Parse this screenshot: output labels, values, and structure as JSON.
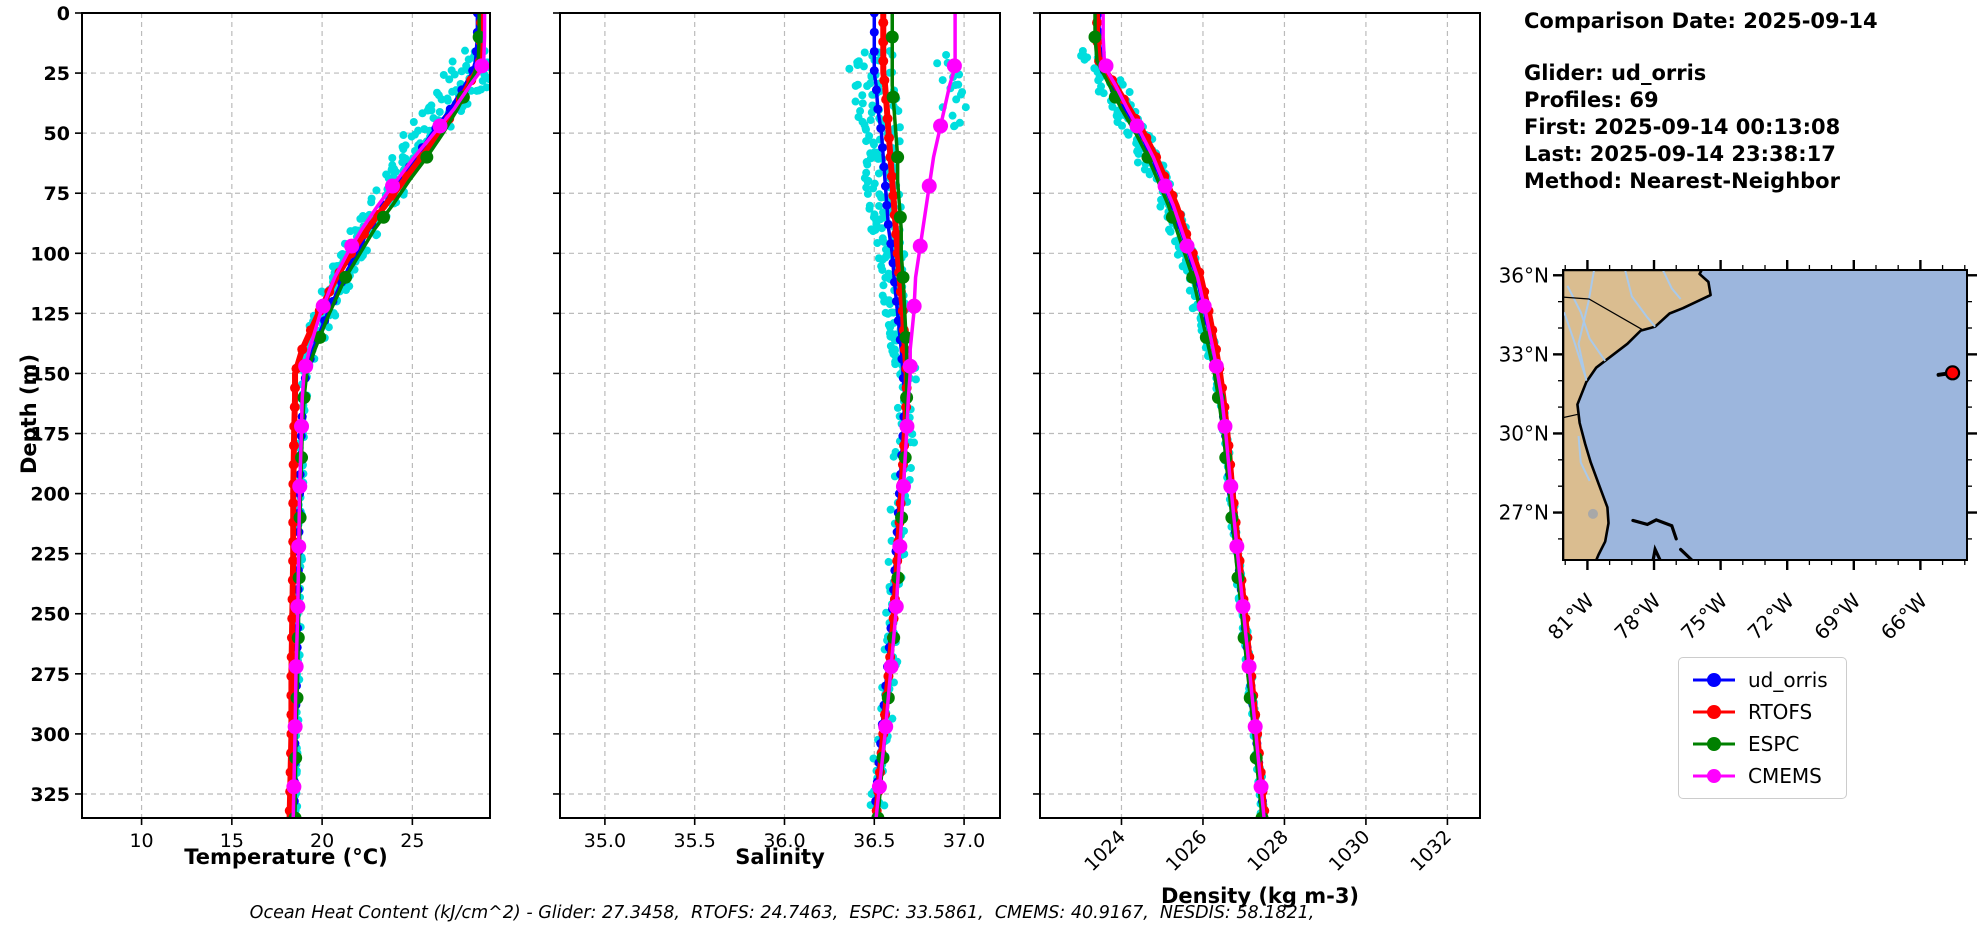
{
  "info_panel": {
    "comparison_date": "Comparison Date: 2025-09-14",
    "glider": "Glider: ud_orris",
    "profiles": "Profiles: 69",
    "first": "First: 2025-09-14 00:13:08",
    "last": "Last: 2025-09-14 23:38:17",
    "method": "Method: Nearest-Neighbor"
  },
  "caption": "Ocean Heat Content (kJ/cm^2) - Glider: 27.3458,  RTOFS: 24.7463,  ESPC: 33.5861,  CMEMS: 40.9167,  NESDIS: 58.1821,",
  "legend": {
    "entries": [
      {
        "label": "ud_orris",
        "color": "#0000ff"
      },
      {
        "label": "RTOFS",
        "color": "#ff0000"
      },
      {
        "label": "ESPC",
        "color": "#008000"
      },
      {
        "label": "CMEMS",
        "color": "#ff00ff"
      }
    ]
  },
  "map": {
    "ocean_color": "#9cb6dd",
    "land_color": "#dabd90",
    "coast_color": "#000000",
    "river_color": "#a9c9ea",
    "lake_color": "#a8a8a8",
    "extent": {
      "lon_west": -82.1,
      "lon_east": -63.9,
      "lat_south": 25.2,
      "lat_north": 36.2
    },
    "lat_ticks": [
      {
        "deg": 36,
        "label": "36°N"
      },
      {
        "deg": 33,
        "label": "33°N"
      },
      {
        "deg": 30,
        "label": "30°N"
      },
      {
        "deg": 27,
        "label": "27°N"
      }
    ],
    "lon_ticks": [
      {
        "deg": -81,
        "label": "81°W"
      },
      {
        "deg": -78,
        "label": "78°W"
      },
      {
        "deg": -75,
        "label": "75°W"
      },
      {
        "deg": -72,
        "label": "72°W"
      },
      {
        "deg": -69,
        "label": "69°W"
      },
      {
        "deg": -66,
        "label": "66°W"
      }
    ],
    "glider_marker": {
      "lon": -64.55,
      "lat": 32.3,
      "fill": "#ff0000"
    }
  },
  "chart_data": {
    "type": "line",
    "ylabel": "Depth (m)",
    "ylim": [
      0,
      335
    ],
    "yticks": [
      0,
      25,
      50,
      75,
      100,
      125,
      150,
      175,
      200,
      225,
      250,
      275,
      300,
      325
    ],
    "ytick_labels": [
      "0",
      "25",
      "50",
      "75",
      "100",
      "125",
      "150",
      "175",
      "200",
      "225",
      "250",
      "275",
      "300",
      "325"
    ],
    "grid": "dashed",
    "legend_position": "lower-right-of-figure",
    "scatter_color": "#00dede",
    "depths_m": [
      0,
      10,
      20,
      25,
      30,
      40,
      50,
      60,
      70,
      80,
      90,
      100,
      110,
      125,
      140,
      150,
      160,
      175,
      200,
      225,
      250,
      275,
      300,
      335
    ],
    "series_styles": [
      {
        "name": "ud_orris",
        "color": "#0000ff",
        "line_width": 3.5,
        "marker_radius": 4.5,
        "marker_every": 8,
        "marker_offset": 0
      },
      {
        "name": "RTOFS",
        "color": "#ff0000",
        "line_width": 6,
        "marker_radius": 5,
        "marker_every": 8,
        "marker_offset": 4
      },
      {
        "name": "ESPC",
        "color": "#008000",
        "line_width": 3.5,
        "marker_radius": 6.5,
        "marker_every": 25,
        "marker_offset": 10
      },
      {
        "name": "CMEMS",
        "color": "#ff00ff",
        "line_width": 3.5,
        "marker_radius": 7.5,
        "marker_every": 25,
        "marker_offset": 22
      }
    ],
    "panels": [
      {
        "id": "temperature",
        "xlabel": "Temperature (°C)",
        "xlim": [
          6.7,
          29.3
        ],
        "xticks": [
          10,
          15,
          20,
          25
        ],
        "xtick_labels": [
          "10",
          "15",
          "20",
          "25"
        ],
        "xtick_rotation": 0,
        "show_y_labels": true,
        "scatter_seed": 11,
        "scatter_bands": [
          {
            "from": 18,
            "to": 150,
            "step": 5,
            "profiles": 9,
            "amp_start": 1.5,
            "amp_end": 0.3,
            "bias": -0.15
          },
          {
            "from": 150,
            "to": 334,
            "step": 6,
            "profiles": 3,
            "amp_start": 0.18,
            "amp_end": 0.12,
            "bias": 0.05
          }
        ],
        "series": [
          {
            "name": "ud_orris",
            "values": [
              28.6,
              28.6,
              28.5,
              28.3,
              27.9,
              27.1,
              26.1,
              25.2,
              24.3,
              23.4,
              22.6,
              21.9,
              21.2,
              20.3,
              19.5,
              19.1,
              18.95,
              18.85,
              18.75,
              18.7,
              18.65,
              18.6,
              18.5,
              18.45
            ]
          },
          {
            "name": "RTOFS",
            "values": [
              28.8,
              28.8,
              28.75,
              28.5,
              28.1,
              27.4,
              26.5,
              25.5,
              24.5,
              23.5,
              22.5,
              21.6,
              20.8,
              19.8,
              18.9,
              18.5,
              18.5,
              18.45,
              18.4,
              18.4,
              18.35,
              18.3,
              18.3,
              18.2
            ]
          },
          {
            "name": "ESPC",
            "values": [
              28.7,
              28.7,
              28.65,
              28.45,
              28.15,
              27.5,
              26.7,
              25.8,
              24.8,
              23.9,
              22.9,
              22.1,
              21.3,
              20.4,
              19.6,
              19.15,
              19.0,
              18.9,
              18.8,
              18.75,
              18.7,
              18.65,
              18.55,
              18.5
            ]
          },
          {
            "name": "CMEMS",
            "values": [
              29.0,
              29.0,
              28.95,
              28.7,
              28.2,
              27.3,
              26.2,
              25.1,
              24.1,
              23.1,
              22.2,
              21.4,
              20.7,
              19.9,
              19.3,
              19.0,
              18.9,
              18.85,
              18.75,
              18.7,
              18.65,
              18.55,
              18.5,
              18.4
            ]
          }
        ]
      },
      {
        "id": "salinity",
        "xlabel": "Salinity",
        "xlim": [
          34.75,
          37.2
        ],
        "xticks": [
          35.0,
          35.5,
          36.0,
          36.5,
          37.0
        ],
        "xtick_labels": [
          "35.0",
          "35.5",
          "36.0",
          "36.5",
          "37.0"
        ],
        "xtick_rotation": 0,
        "show_y_labels": false,
        "scatter_seed": 22,
        "scatter_bands": [
          {
            "from": 18,
            "to": 150,
            "step": 5,
            "profiles": 8,
            "amp_start": 0.14,
            "amp_end": 0.04,
            "bias": -0.01
          },
          {
            "from": 150,
            "to": 334,
            "step": 6,
            "profiles": 3,
            "amp_start": 0.06,
            "amp_end": 0.04,
            "bias": 0.01
          },
          {
            "from": 20,
            "to": 48,
            "step": 5,
            "profiles": 3,
            "amp_start": 0.1,
            "amp_end": 0.06,
            "bias": 0.42
          }
        ],
        "series": [
          {
            "name": "ud_orris",
            "values": [
              36.5,
              36.5,
              36.5,
              36.5,
              36.51,
              36.52,
              36.54,
              36.55,
              36.56,
              36.57,
              36.58,
              36.6,
              36.61,
              36.63,
              36.65,
              36.66,
              36.67,
              36.66,
              36.64,
              36.62,
              36.6,
              36.57,
              36.54,
              36.5
            ]
          },
          {
            "name": "RTOFS",
            "values": [
              36.55,
              36.55,
              36.55,
              36.55,
              36.56,
              36.57,
              36.58,
              36.59,
              36.6,
              36.61,
              36.62,
              36.63,
              36.64,
              36.66,
              36.67,
              36.68,
              36.68,
              36.67,
              36.65,
              36.63,
              36.61,
              36.58,
              36.55,
              36.51
            ]
          },
          {
            "name": "ESPC",
            "values": [
              36.6,
              36.6,
              36.6,
              36.6,
              36.6,
              36.61,
              36.62,
              36.63,
              36.63,
              36.64,
              36.65,
              36.65,
              36.66,
              36.67,
              36.68,
              36.68,
              36.68,
              36.68,
              36.66,
              36.64,
              36.62,
              36.59,
              36.56,
              36.52
            ]
          },
          {
            "name": "CMEMS",
            "values": [
              36.95,
              36.95,
              36.95,
              36.94,
              36.92,
              36.89,
              36.86,
              36.83,
              36.81,
              36.79,
              36.77,
              36.75,
              36.73,
              36.72,
              36.7,
              36.7,
              36.69,
              36.68,
              36.66,
              36.64,
              36.62,
              36.59,
              36.56,
              36.51
            ]
          }
        ]
      },
      {
        "id": "density",
        "xlabel": "Density (kg m-3)",
        "xlim": [
          1022.0,
          1032.8
        ],
        "xticks": [
          1024,
          1026,
          1028,
          1030,
          1032
        ],
        "xtick_labels": [
          "1024",
          "1026",
          "1028",
          "1030",
          "1032"
        ],
        "xtick_rotation": 45,
        "show_y_labels": false,
        "scatter_seed": 33,
        "scatter_bands": [
          {
            "from": 15,
            "to": 140,
            "step": 5,
            "profiles": 8,
            "amp_start": 0.4,
            "amp_end": 0.12,
            "bias": -0.08
          },
          {
            "from": 140,
            "to": 334,
            "step": 6,
            "profiles": 3,
            "amp_start": 0.09,
            "amp_end": 0.06,
            "bias": -0.02
          }
        ],
        "series": [
          {
            "name": "ud_orris",
            "values": [
              1023.45,
              1023.45,
              1023.5,
              1023.6,
              1023.75,
              1024.1,
              1024.45,
              1024.75,
              1025.0,
              1025.25,
              1025.45,
              1025.65,
              1025.85,
              1026.05,
              1026.25,
              1026.35,
              1026.45,
              1026.55,
              1026.7,
              1026.85,
              1027.0,
              1027.15,
              1027.3,
              1027.5
            ]
          },
          {
            "name": "RTOFS",
            "values": [
              1023.4,
              1023.4,
              1023.45,
              1023.65,
              1023.85,
              1024.2,
              1024.55,
              1024.85,
              1025.1,
              1025.35,
              1025.55,
              1025.75,
              1025.95,
              1026.15,
              1026.32,
              1026.42,
              1026.5,
              1026.6,
              1026.73,
              1026.88,
              1027.03,
              1027.18,
              1027.33,
              1027.52
            ]
          },
          {
            "name": "ESPC",
            "values": [
              1023.35,
              1023.35,
              1023.4,
              1023.55,
              1023.7,
              1024.0,
              1024.35,
              1024.65,
              1024.9,
              1025.15,
              1025.35,
              1025.55,
              1025.75,
              1025.95,
              1026.15,
              1026.28,
              1026.38,
              1026.5,
              1026.65,
              1026.8,
              1026.95,
              1027.1,
              1027.25,
              1027.45
            ]
          },
          {
            "name": "CMEMS",
            "values": [
              1023.55,
              1023.55,
              1023.58,
              1023.68,
              1023.85,
              1024.15,
              1024.48,
              1024.78,
              1025.02,
              1025.27,
              1025.47,
              1025.67,
              1025.87,
              1026.07,
              1026.25,
              1026.36,
              1026.46,
              1026.56,
              1026.7,
              1026.85,
              1027.0,
              1027.15,
              1027.3,
              1027.5
            ]
          }
        ]
      }
    ]
  }
}
